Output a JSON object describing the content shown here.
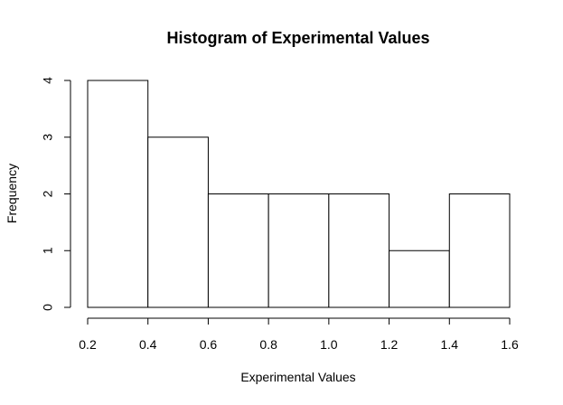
{
  "chart_data": {
    "type": "bar",
    "title": "Histogram of Experimental Values",
    "xlabel": "Experimental Values",
    "ylabel": "Frequency",
    "bins": [
      {
        "start": 0.2,
        "end": 0.4,
        "count": 4
      },
      {
        "start": 0.4,
        "end": 0.6,
        "count": 3
      },
      {
        "start": 0.6,
        "end": 0.8,
        "count": 2
      },
      {
        "start": 0.8,
        "end": 1.0,
        "count": 2
      },
      {
        "start": 1.0,
        "end": 1.2,
        "count": 2
      },
      {
        "start": 1.2,
        "end": 1.4,
        "count": 1
      },
      {
        "start": 1.4,
        "end": 1.6,
        "count": 2
      }
    ],
    "xlim": [
      0.2,
      1.6
    ],
    "ylim": [
      0,
      4
    ],
    "x_ticks": [
      0.2,
      0.4,
      0.6,
      0.8,
      1.0,
      1.2,
      1.4,
      1.6
    ],
    "x_tick_labels": [
      "0.2",
      "0.4",
      "0.6",
      "0.8",
      "1.0",
      "1.2",
      "1.4",
      "1.6"
    ],
    "y_ticks": [
      0,
      1,
      2,
      3,
      4
    ],
    "y_tick_labels": [
      "0",
      "1",
      "2",
      "3",
      "4"
    ],
    "grid": false,
    "legend": "none",
    "colors": {
      "bar_fill": "#ffffff",
      "bar_stroke": "#000000"
    }
  }
}
